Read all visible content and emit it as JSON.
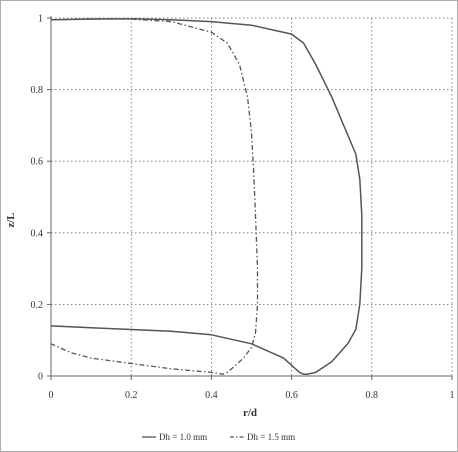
{
  "chart_data": {
    "type": "line",
    "title": "",
    "xlabel": "r/d",
    "ylabel": "z/L",
    "xlim": [
      0,
      1
    ],
    "ylim": [
      0,
      1
    ],
    "x_ticks": [
      "0",
      "0.2",
      "0.4",
      "0.6",
      "0.8",
      "1"
    ],
    "y_ticks": [
      "0",
      "0.2",
      "0.4",
      "0.6",
      "0.8",
      "1"
    ],
    "grid": true,
    "legend_position": "bottom-center",
    "series": [
      {
        "name": "Dh = 1.0 mm",
        "style": "solid",
        "color": "#555555",
        "x": [
          0,
          0.1,
          0.2,
          0.3,
          0.4,
          0.5,
          0.6,
          0.63,
          0.66,
          0.7,
          0.73,
          0.76,
          0.77,
          0.775,
          0.775,
          0.77,
          0.76,
          0.74,
          0.7,
          0.66,
          0.64,
          0.63,
          0.62,
          0.6,
          0.58,
          0.5,
          0.4,
          0.3,
          0.2,
          0.1,
          0
        ],
        "y": [
          0.995,
          0.997,
          0.998,
          0.995,
          0.99,
          0.98,
          0.955,
          0.93,
          0.87,
          0.78,
          0.7,
          0.62,
          0.55,
          0.45,
          0.3,
          0.2,
          0.13,
          0.09,
          0.04,
          0.01,
          0.005,
          0.005,
          0.01,
          0.03,
          0.05,
          0.09,
          0.115,
          0.125,
          0.13,
          0.135,
          0.14
        ]
      },
      {
        "name": "Dh = 1.5 mm",
        "style": "dash-dot",
        "color": "#555555",
        "x": [
          0,
          0.1,
          0.2,
          0.3,
          0.4,
          0.44,
          0.47,
          0.49,
          0.5,
          0.505,
          0.51,
          0.515,
          0.515,
          0.51,
          0.5,
          0.48,
          0.46,
          0.44,
          0.43,
          0.4,
          0.3,
          0.2,
          0.1,
          0.05,
          0
        ],
        "y": [
          0.995,
          0.998,
          0.997,
          0.99,
          0.96,
          0.93,
          0.87,
          0.78,
          0.68,
          0.58,
          0.45,
          0.3,
          0.2,
          0.12,
          0.08,
          0.05,
          0.03,
          0.01,
          0.005,
          0.01,
          0.02,
          0.035,
          0.05,
          0.065,
          0.09
        ]
      }
    ]
  }
}
